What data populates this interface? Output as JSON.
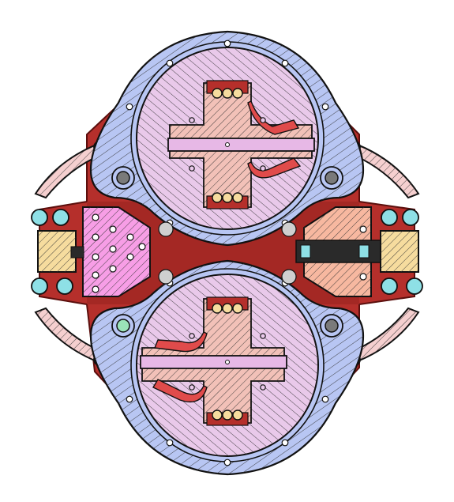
{
  "title": "",
  "colors": {
    "background": "#ffffff",
    "frame": "#b52f2b",
    "frame_dark": "#7e1916",
    "ring": "#b8c6f3",
    "disc": "#e9c9ea",
    "coil_block": "#f2c1b8",
    "slider_bar": "#e7b8e6",
    "contact": "#e04b4b",
    "side_block_left": "#f79ee6",
    "side_block_right": "#f7b8a0",
    "end_cap": "#f6dc9e",
    "screw": "#8ee0e6",
    "arm": "#f5cfcf",
    "pin": "#7a7a7a",
    "post": "#9be3b9",
    "outline": "#111111",
    "hatch": "#333333"
  },
  "parts": [
    "frame-plate",
    "upper-mechanism",
    "lower-mechanism",
    "left-side-block",
    "right-side-block",
    "left-end-cap",
    "right-end-cap",
    "flexure-arms"
  ]
}
